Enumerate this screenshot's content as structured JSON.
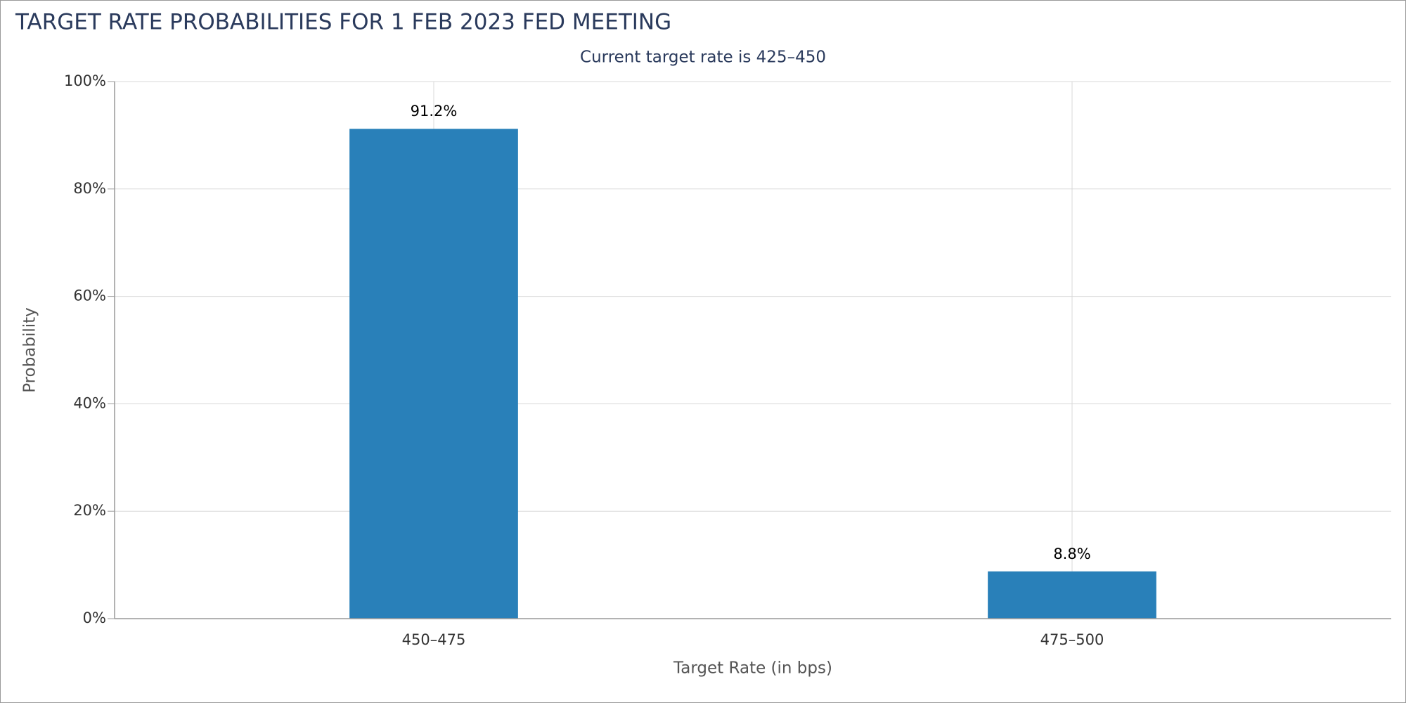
{
  "chart_data": {
    "type": "bar",
    "title": "TARGET RATE PROBABILITIES FOR 1 FEB 2023 FED MEETING",
    "subtitle": "Current target rate is 425–450",
    "x_label": "Target Rate (in bps)",
    "y_label": "Probability",
    "categories": [
      "450–475",
      "475–500"
    ],
    "values": [
      91.2,
      8.8
    ],
    "value_labels": [
      "91.2%",
      "8.8%"
    ],
    "color": "#2980b9",
    "ylim": [
      0,
      100
    ],
    "yticks": [
      {
        "value": 0,
        "label": "0%"
      },
      {
        "value": 20,
        "label": "20%"
      },
      {
        "value": 40,
        "label": "40%"
      },
      {
        "value": 60,
        "label": "60%"
      },
      {
        "value": 80,
        "label": "80%"
      },
      {
        "value": 100,
        "label": "100%"
      }
    ],
    "grid": true
  }
}
